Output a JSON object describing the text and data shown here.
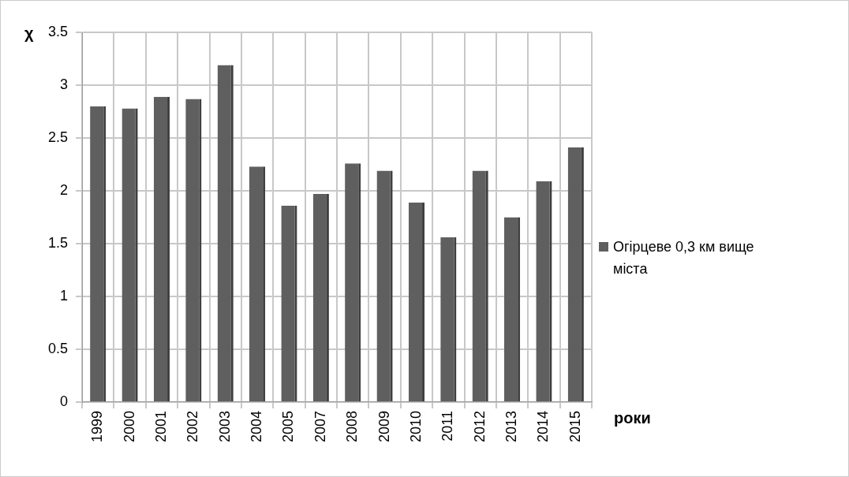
{
  "chart_data": {
    "type": "bar",
    "ylabel": "χ",
    "xlabel": "роки",
    "categories": [
      "1999",
      "2000",
      "2001",
      "2002",
      "2003",
      "2004",
      "2005",
      "2007",
      "2008",
      "2009",
      "2010",
      "2011",
      "2012",
      "2013",
      "2014",
      "2015"
    ],
    "series": [
      {
        "name": "Огірцеве 0,3 км вище міста",
        "color": "#5f5f5f",
        "values": [
          2.8,
          2.78,
          2.89,
          2.87,
          3.19,
          2.23,
          1.86,
          1.97,
          2.26,
          2.19,
          1.89,
          1.56,
          2.19,
          1.75,
          2.09,
          2.41
        ]
      }
    ],
    "ylim": [
      0,
      3.5
    ],
    "yticks": [
      0,
      0.5,
      1,
      1.5,
      2,
      2.5,
      3,
      3.5
    ],
    "grid": true,
    "legend": "right"
  }
}
